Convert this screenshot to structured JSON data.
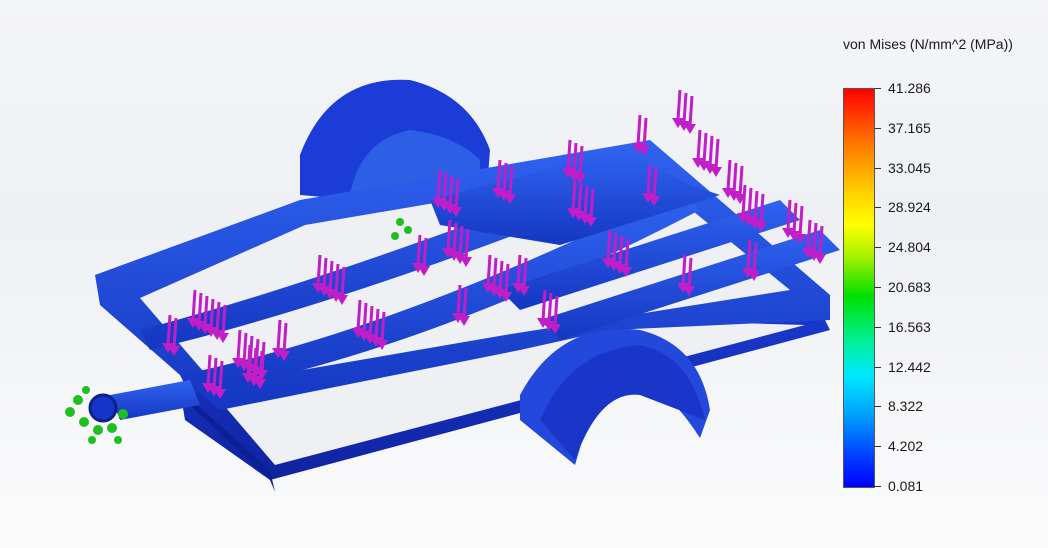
{
  "legend": {
    "title": "von Mises (N/mm^2 (MPa))",
    "ticks": [
      "41.286",
      "37.165",
      "33.045",
      "28.924",
      "24.804",
      "20.683",
      "16.563",
      "12.442",
      "8.322",
      "4.202",
      "0.081"
    ],
    "colors": {
      "max": "#ff0000",
      "high": "#ffff00",
      "mid": "#00e000",
      "low_mid": "#00e8ff",
      "min": "#0000ff"
    }
  },
  "model": {
    "load_arrow_color": "#c21ec8",
    "fixture_color": "#1fbf1f",
    "body_color": "#1b3fd6"
  }
}
